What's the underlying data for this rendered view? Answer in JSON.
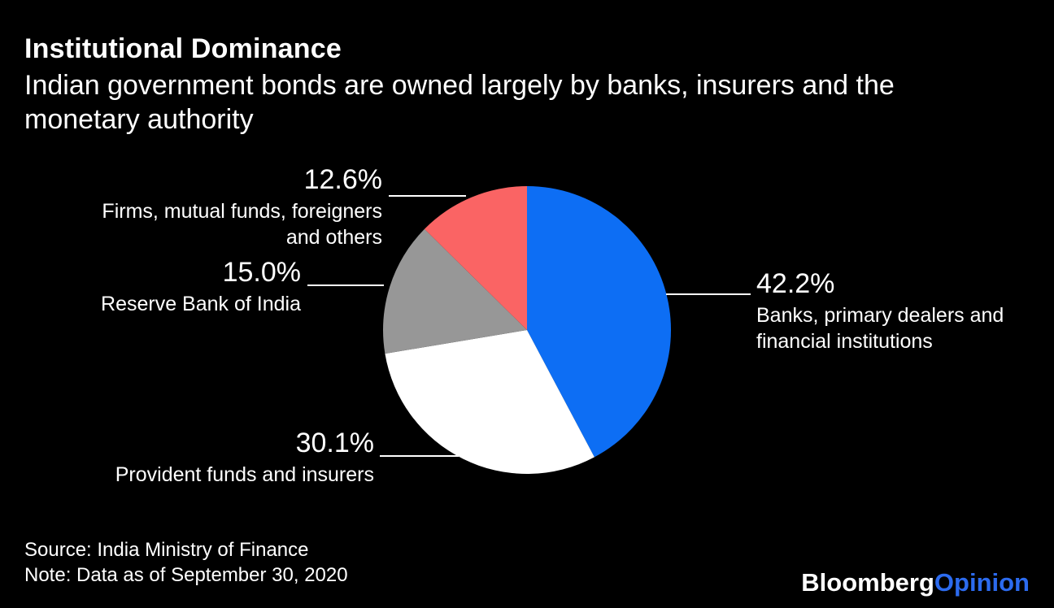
{
  "header": {
    "title": "Institutional Dominance",
    "subtitle": "Indian government bonds are owned largely by banks, insurers and the\nmonetary authority"
  },
  "chart_data": {
    "type": "pie",
    "title": "Institutional Dominance",
    "subtitle": "Indian government bonds are owned largely by banks, insurers and the monetary authority",
    "unit": "percent",
    "start_angle": "12 o'clock",
    "direction": "clockwise",
    "legend_position": "direct labels with leader lines",
    "slices": [
      {
        "id": "banks",
        "label": "Banks, primary dealers and financial institutions",
        "label_display": "Banks, primary dealers and\nfinancial institutions",
        "value": 42.2,
        "pct_label": "42.2%",
        "color": "#0d6ef4"
      },
      {
        "id": "provident-funds",
        "label": "Provident funds and insurers",
        "label_display": "Provident funds and insurers",
        "value": 30.1,
        "pct_label": "30.1%",
        "color": "#ffffff"
      },
      {
        "id": "rbi",
        "label": "Reserve Bank of India",
        "label_display": "Reserve Bank of India",
        "value": 15.0,
        "pct_label": "15.0%",
        "color": "#979797"
      },
      {
        "id": "firms",
        "label": "Firms, mutual funds, foreigners and others",
        "label_display": "Firms, mutual funds, foreigners\nand others",
        "value": 12.6,
        "pct_label": "12.6%",
        "color": "#fa6464"
      }
    ]
  },
  "footer": {
    "source_line": "Source: India Ministry of Finance",
    "note_line": "Note: Data as of September 30, 2020",
    "brand_bloomberg": "Bloomberg",
    "brand_opinion": "Opinion"
  },
  "colors": {
    "background": "#000000",
    "text": "#ffffff",
    "leader_line": "#ffffff",
    "brand_opinion_blue": "#2c6bef"
  }
}
